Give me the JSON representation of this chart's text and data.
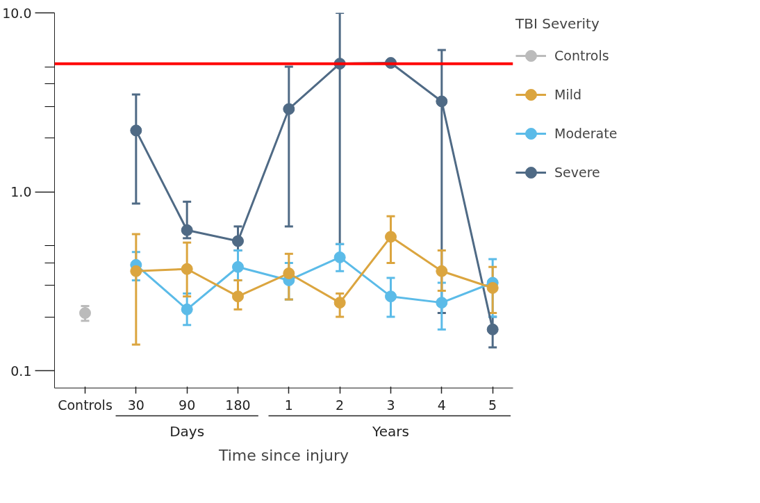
{
  "chart_data": {
    "type": "line",
    "xlabel": "Time since injury",
    "legend_title": "TBI Severity",
    "categories": [
      "Controls",
      "30",
      "90",
      "180",
      "1",
      "2",
      "3",
      "4",
      "5"
    ],
    "series": [
      {
        "name": "Controls",
        "color": "#bbbbbb",
        "values": [
          0.21,
          null,
          null,
          null,
          null,
          null,
          null,
          null,
          null
        ],
        "errors": [
          [
            0.19,
            0.23
          ],
          null,
          null,
          null,
          null,
          null,
          null,
          null,
          null
        ]
      },
      {
        "name": "Mild",
        "color": "#dba53f",
        "values": [
          null,
          0.36,
          0.37,
          0.26,
          0.35,
          0.24,
          0.56,
          0.36,
          0.29
        ],
        "errors": [
          null,
          [
            0.14,
            0.58
          ],
          [
            0.26,
            0.52
          ],
          [
            0.22,
            0.32
          ],
          [
            0.25,
            0.45
          ],
          [
            0.2,
            0.27
          ],
          [
            0.4,
            0.73
          ],
          [
            0.28,
            0.47
          ],
          [
            0.21,
            0.38
          ]
        ]
      },
      {
        "name": "Moderate",
        "color": "#5bbbe8",
        "values": [
          null,
          0.39,
          0.22,
          0.38,
          0.32,
          0.43,
          0.26,
          0.24,
          0.31
        ],
        "errors": [
          null,
          [
            0.32,
            0.46
          ],
          [
            0.18,
            0.27
          ],
          [
            0.32,
            0.47
          ],
          [
            0.25,
            0.4
          ],
          [
            0.36,
            0.51
          ],
          [
            0.2,
            0.33
          ],
          [
            0.17,
            0.31
          ],
          [
            0.2,
            0.42
          ]
        ]
      },
      {
        "name": "Severe",
        "color": "#4f6a85",
        "values": [
          null,
          2.2,
          0.61,
          0.53,
          2.9,
          5.2,
          5.25,
          3.2,
          0.17
        ],
        "errors": [
          null,
          [
            0.86,
            3.5
          ],
          [
            0.55,
            0.88
          ],
          [
            0.47,
            0.64
          ],
          [
            0.64,
            5.0
          ],
          [
            0.51,
            10.0
          ],
          null,
          [
            0.21,
            6.2
          ],
          [
            0.135,
            0.2
          ]
        ]
      }
    ],
    "log": "y",
    "ylim": [
      0.08,
      10
    ],
    "yticks": [
      {
        "value": 0.1,
        "label": "0.1"
      },
      {
        "value": 0.2,
        "label": null
      },
      {
        "value": 0.3,
        "label": null
      },
      {
        "value": 0.4,
        "label": null
      },
      {
        "value": 0.5,
        "label": null
      },
      {
        "value": 1,
        "label": "1.0"
      },
      {
        "value": 2,
        "label": null
      },
      {
        "value": 3,
        "label": null
      },
      {
        "value": 4,
        "label": null
      },
      {
        "value": 5,
        "label": null
      },
      {
        "value": 10,
        "label": "10.0"
      }
    ],
    "ref_lines": [
      {
        "axis": "y",
        "value": 5.2,
        "label": null,
        "color": "#ff0000"
      }
    ],
    "annotations": [
      "Days",
      "Years"
    ],
    "marker": "circle",
    "grid": false,
    "legend": "right"
  }
}
